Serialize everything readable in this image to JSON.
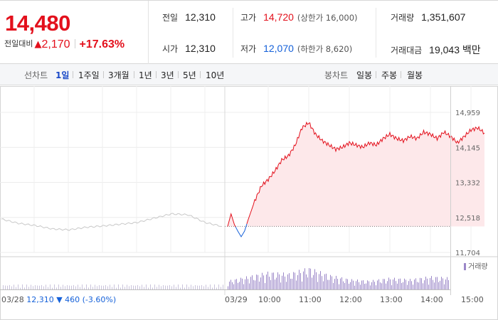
{
  "summary": {
    "price": "14,480",
    "change_label": "전일대비",
    "change_arrow": "▲",
    "change_value": "2,170",
    "change_pct": "+17.63%"
  },
  "stats": {
    "prev_close": {
      "label": "전일",
      "value": "12,310"
    },
    "open": {
      "label": "시가",
      "value": "12,310"
    },
    "high": {
      "label": "고가",
      "value": "14,720",
      "sub": "(상한가 16,000)"
    },
    "low": {
      "label": "저가",
      "value": "12,070",
      "sub": "(하한가 8,620)"
    },
    "volume": {
      "label": "거래량",
      "value": "1,351,607"
    },
    "amount": {
      "label": "거래대금",
      "value": "19,043 백만"
    }
  },
  "tabs": {
    "line_label": "선차트",
    "line_items": [
      "1일",
      "1주일",
      "3개월",
      "1년",
      "3년",
      "5년",
      "10년"
    ],
    "active_index": 0,
    "candle_label": "봉차트",
    "candle_items": [
      "일봉",
      "주봉",
      "월봉"
    ]
  },
  "colors": {
    "up": "#e3101c",
    "down": "#1561d9",
    "prev_day_line": "#c8c8c8",
    "fill": "#fde8ea",
    "volume": "#9b87c8",
    "active_tab": "#1a49c8"
  },
  "chart_data": {
    "type": "line",
    "y_ticks": [
      "14,959",
      "14,145",
      "13,332",
      "12,518",
      "11,704"
    ],
    "ylim": [
      11704,
      14959
    ],
    "baseline": 12310,
    "x_ticks": [
      "03/29",
      "10:00",
      "11:00",
      "12:00",
      "13:00",
      "14:00",
      "15:00"
    ],
    "prev_day_label": "03/28",
    "prev_day_close": "12,310",
    "prev_day_arrow": "▼",
    "prev_day_change": "460",
    "prev_day_pct": "(-3.60%)",
    "volume_legend": "거래량",
    "series": [
      {
        "name": "03/28",
        "x": [
          "03/28 09:00",
          "03/28 09:30",
          "03/28 10:00",
          "03/28 10:30",
          "03/28 11:00",
          "03/28 11:30",
          "03/28 12:00",
          "03/28 12:30",
          "03/28 13:00",
          "03/28 13:30",
          "03/28 14:00",
          "03/28 14:30",
          "03/28 15:00",
          "03/28 15:30"
        ],
        "values": [
          12480,
          12380,
          12330,
          12250,
          12230,
          12290,
          12320,
          12360,
          12400,
          12500,
          12600,
          12580,
          12400,
          12310
        ]
      },
      {
        "name": "03/29",
        "x": [
          "09:00",
          "09:05",
          "09:10",
          "09:15",
          "09:20",
          "09:25",
          "09:30",
          "09:40",
          "09:50",
          "10:00",
          "10:10",
          "10:20",
          "10:30",
          "10:40",
          "10:50",
          "11:00",
          "11:10",
          "11:20",
          "11:30",
          "11:40",
          "11:50",
          "12:00",
          "12:10",
          "12:20",
          "12:30",
          "12:40",
          "12:50",
          "13:00",
          "13:10",
          "13:20",
          "13:30",
          "13:40",
          "13:50",
          "14:00",
          "14:10",
          "14:20",
          "14:30",
          "14:40",
          "14:50",
          "15:00",
          "15:10",
          "15:20"
        ],
        "values": [
          12310,
          12600,
          12350,
          12200,
          12070,
          12200,
          12450,
          12900,
          13250,
          13400,
          13600,
          13850,
          13950,
          14200,
          14600,
          14720,
          14450,
          14300,
          14200,
          14100,
          14150,
          14250,
          14200,
          14150,
          14250,
          14200,
          14350,
          14450,
          14350,
          14300,
          14400,
          14350,
          14500,
          14450,
          14350,
          14500,
          14400,
          14250,
          14400,
          14550,
          14600,
          14480
        ]
      }
    ],
    "volume": {
      "x": [
        "09:00",
        "09:30",
        "10:00",
        "10:30",
        "11:00",
        "11:30",
        "12:00",
        "12:30",
        "13:00",
        "13:30",
        "14:00",
        "14:30",
        "15:00",
        "15:20"
      ],
      "values": [
        30,
        45,
        60,
        55,
        75,
        50,
        35,
        30,
        40,
        35,
        45,
        40,
        55,
        90
      ]
    }
  }
}
